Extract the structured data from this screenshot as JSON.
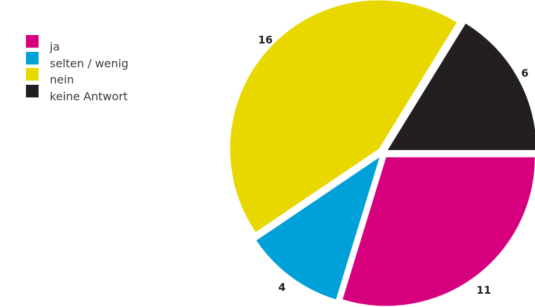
{
  "chart_data": {
    "type": "pie",
    "title": "",
    "categories": [
      "ja",
      "selten / wenig",
      "nein",
      "keine Antwort"
    ],
    "values": [
      11,
      4,
      16,
      6
    ],
    "colors": [
      "#d6007f",
      "#00a0d8",
      "#e8d800",
      "#231f20"
    ],
    "exploded": true,
    "legend_position": "top-left",
    "slice_labels": [
      "11",
      "4",
      "16",
      "6"
    ]
  },
  "legend": [
    {
      "label": "ja",
      "color": "#d6007f"
    },
    {
      "label": "selten / wenig",
      "color": "#00a0d8"
    },
    {
      "label": "nein",
      "color": "#e8d800"
    },
    {
      "label": "keine Antwort",
      "color": "#231f20"
    }
  ]
}
